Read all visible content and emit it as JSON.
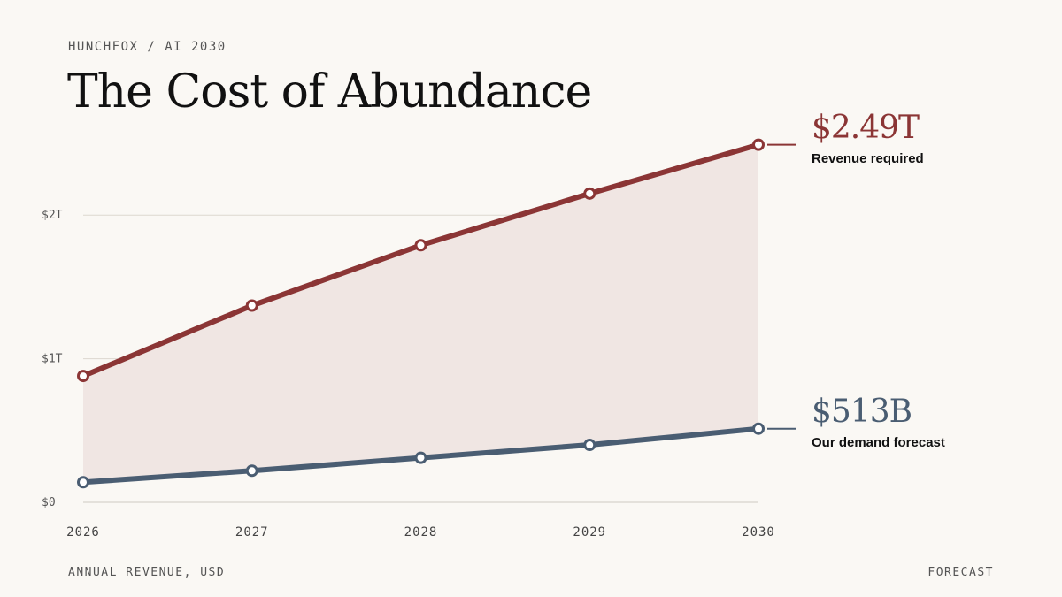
{
  "header": {
    "kicker": "HUNCHFOX / AI 2030",
    "title": "The Cost of Abundance"
  },
  "footer": {
    "left": "ANNUAL REVENUE, USD",
    "right": "FORECAST"
  },
  "callouts": {
    "required": {
      "value": "$2.49T",
      "label": "Revenue required"
    },
    "forecast": {
      "value": "$513B",
      "label": "Our demand forecast"
    }
  },
  "colors": {
    "required": "#8b3535",
    "forecast": "#4a5d72",
    "gap_fill": "#f0e6e3"
  },
  "chart_data": {
    "type": "line",
    "x": [
      "2026",
      "2027",
      "2028",
      "2029",
      "2030"
    ],
    "series": [
      {
        "name": "Revenue required",
        "values": [
          0.88,
          1.37,
          1.79,
          2.15,
          2.49
        ]
      },
      {
        "name": "Our demand forecast",
        "values": [
          0.14,
          0.22,
          0.31,
          0.4,
          0.513
        ]
      }
    ],
    "y_ticks": [
      {
        "value": 0,
        "label": "$0"
      },
      {
        "value": 1,
        "label": "$1T"
      },
      {
        "value": 2,
        "label": "$2T"
      }
    ],
    "ylim": [
      0,
      2.5
    ],
    "grid": true,
    "shaded_gap": true
  }
}
